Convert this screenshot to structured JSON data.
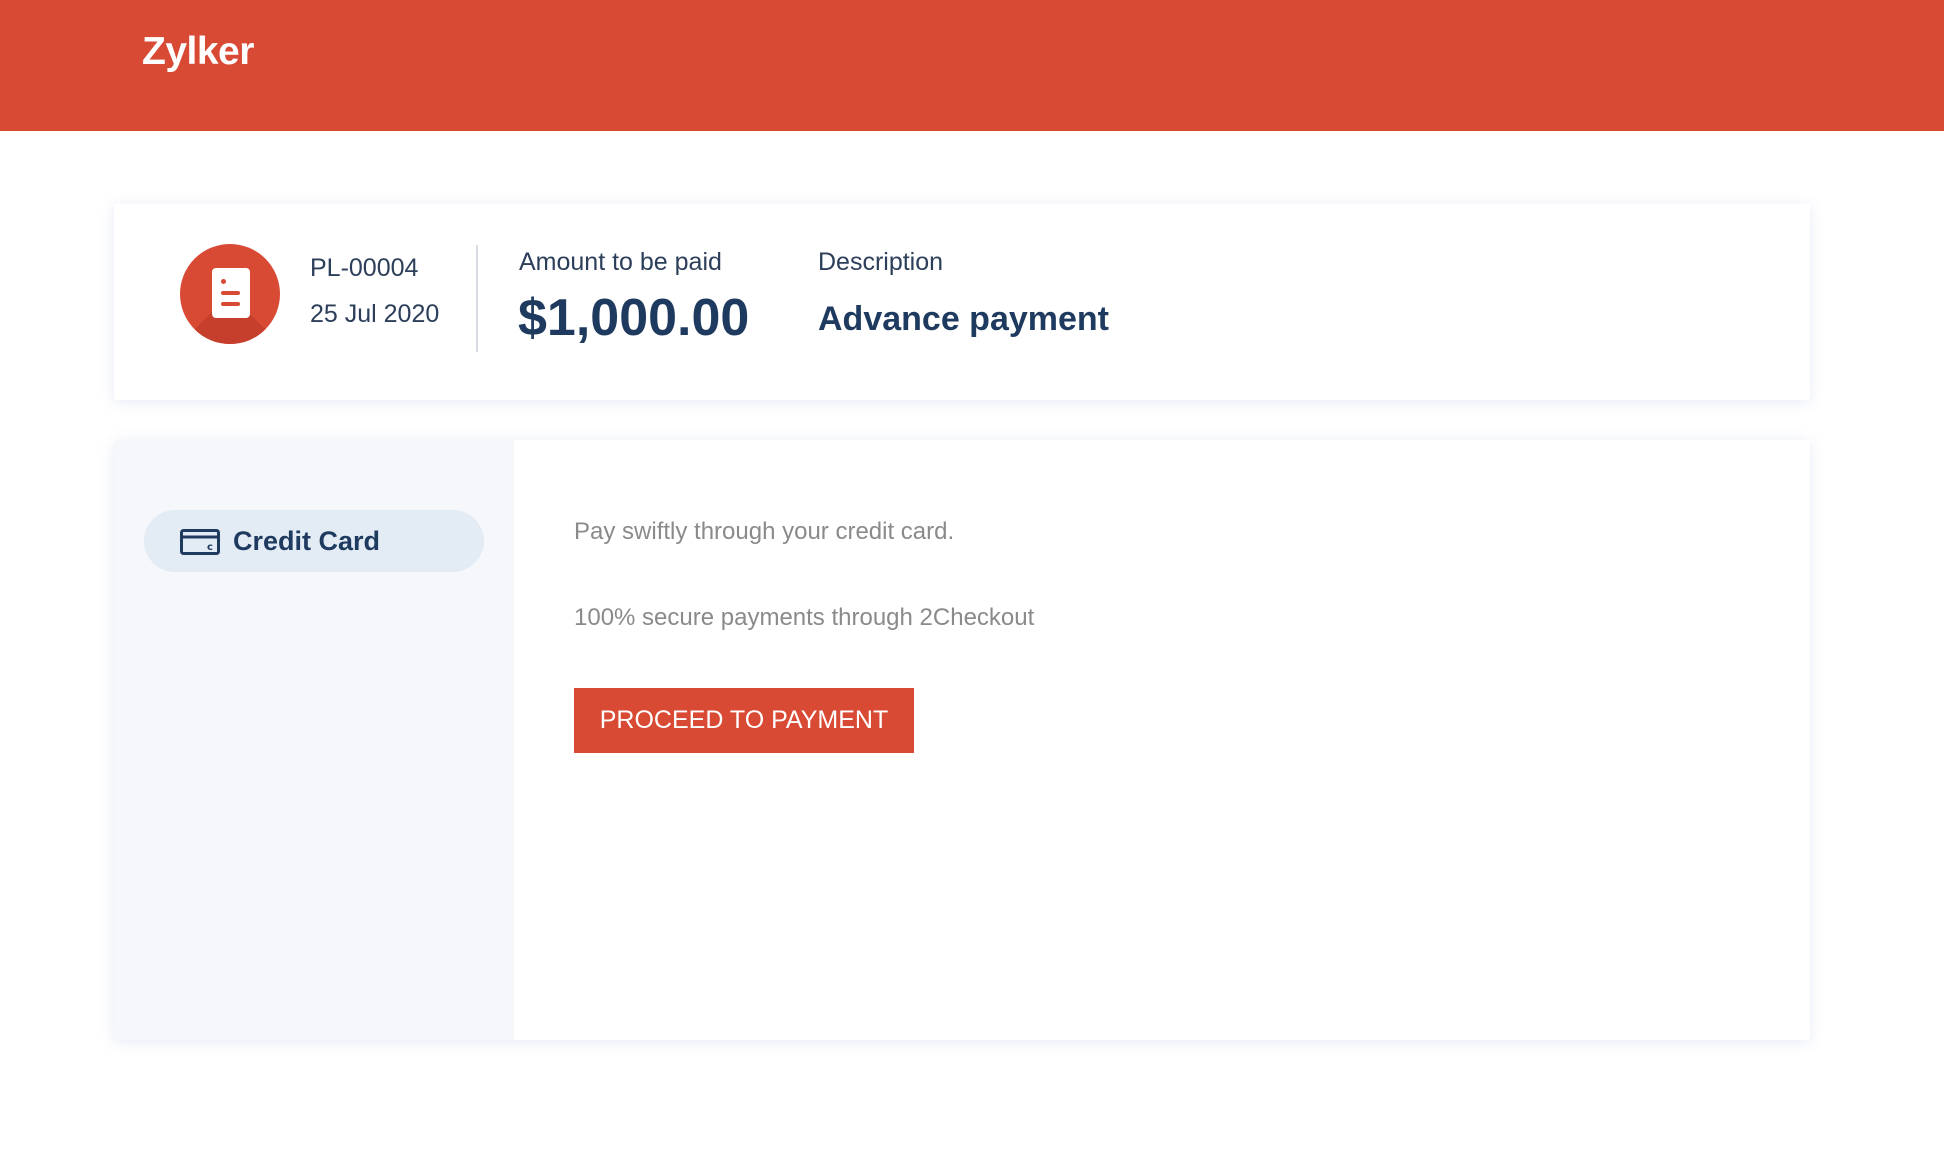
{
  "header": {
    "brand": "Zylker",
    "color": "#d94a35"
  },
  "summary": {
    "icon": "document-icon",
    "number": "PL-00004",
    "date": "25 Jul 2020",
    "amount_label": "Amount to be paid",
    "amount": "$1,000.00",
    "description_label": "Description",
    "description": "Advance payment"
  },
  "payment": {
    "methods": [
      {
        "icon": "credit-card-icon",
        "label": "Credit Card",
        "selected": true
      }
    ],
    "line1": "Pay swiftly through your credit card.",
    "line2": "100% secure payments through 2Checkout",
    "button": "PROCEED TO PAYMENT"
  }
}
